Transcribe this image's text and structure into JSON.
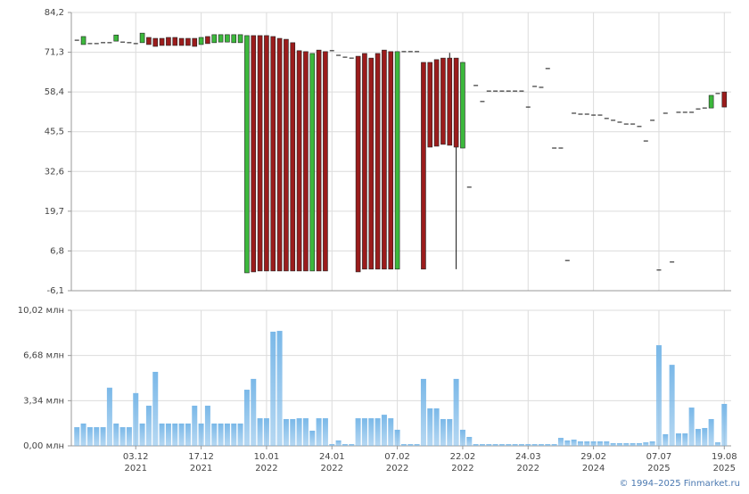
{
  "chart_data": [
    {
      "type": "candlestick",
      "open": [
        75.2,
        73.8,
        74.1,
        74.1,
        74.4,
        74.4,
        74.9,
        74.6,
        74.4,
        74.1,
        74.4,
        76.1,
        75.8,
        75.8,
        76.1,
        76.1,
        75.8,
        75.8,
        75.8,
        73.8,
        76.4,
        74.4,
        74.6,
        74.6,
        74.4,
        74.4,
        -0.3,
        76.7,
        76.7,
        76.7,
        76.4,
        75.8,
        75.5,
        74.4,
        71.8,
        71.5,
        0.3,
        72.0,
        71.5,
        71.8,
        70.3,
        69.7,
        69.4,
        70.0,
        70.9,
        69.4,
        70.9,
        72.0,
        71.5,
        0.9,
        71.5,
        71.5,
        71.5,
        68.0,
        68.0,
        68.9,
        69.4,
        69.4,
        69.4,
        40.2,
        27.5,
        60.5,
        55.3,
        58.7,
        58.7,
        58.7,
        58.7,
        58.7,
        58.7,
        53.5,
        60.2,
        59.9,
        66.0,
        40.2,
        40.2,
        3.7,
        51.5,
        51.2,
        51.2,
        50.9,
        50.9,
        49.8,
        49.2,
        48.6,
        48.0,
        48.0,
        47.2,
        42.5,
        49.2,
        0.6,
        51.5,
        3.2,
        51.8,
        51.8,
        51.8,
        52.9,
        53.2,
        53.2,
        57.9,
        58.4
      ],
      "high": [
        75.2,
        76.4,
        74.1,
        74.1,
        74.4,
        74.4,
        76.9,
        74.6,
        74.4,
        74.1,
        77.5,
        76.1,
        75.8,
        75.8,
        76.1,
        76.1,
        75.8,
        75.8,
        75.8,
        76.1,
        76.4,
        77.0,
        77.0,
        77.0,
        77.0,
        77.0,
        76.7,
        76.7,
        76.7,
        76.7,
        76.4,
        75.8,
        75.5,
        74.4,
        71.8,
        71.5,
        70.9,
        72.0,
        71.5,
        71.8,
        70.3,
        69.7,
        69.4,
        70.0,
        70.9,
        69.4,
        70.9,
        72.0,
        71.5,
        71.5,
        71.5,
        71.5,
        71.5,
        68.0,
        68.0,
        68.9,
        69.4,
        71.1,
        69.4,
        68.0,
        27.5,
        60.5,
        55.3,
        58.7,
        58.7,
        58.7,
        58.7,
        58.7,
        58.7,
        53.5,
        60.2,
        59.9,
        66.0,
        40.2,
        40.2,
        3.7,
        51.5,
        51.2,
        51.2,
        50.9,
        50.9,
        49.8,
        49.2,
        48.6,
        48.0,
        48.0,
        47.2,
        42.5,
        49.2,
        0.6,
        51.5,
        3.2,
        51.8,
        51.8,
        51.8,
        52.9,
        53.2,
        57.3,
        57.9,
        58.4
      ],
      "low": [
        75.2,
        73.8,
        74.1,
        74.1,
        74.4,
        74.4,
        74.9,
        74.6,
        74.4,
        74.1,
        74.4,
        73.8,
        73.2,
        73.5,
        73.5,
        73.5,
        73.5,
        73.5,
        73.2,
        73.8,
        74.1,
        74.4,
        74.6,
        74.6,
        74.4,
        74.4,
        -0.3,
        0.0,
        0.3,
        0.3,
        0.3,
        0.3,
        0.3,
        0.3,
        0.3,
        0.3,
        0.3,
        0.3,
        0.3,
        71.8,
        70.3,
        69.7,
        69.4,
        0.0,
        0.9,
        0.9,
        0.9,
        0.9,
        0.9,
        0.9,
        71.5,
        71.5,
        71.5,
        0.9,
        40.5,
        40.8,
        41.4,
        41.1,
        0.9,
        40.2,
        27.5,
        60.5,
        55.3,
        58.7,
        58.7,
        58.7,
        58.7,
        58.7,
        58.7,
        53.5,
        60.2,
        59.9,
        66.0,
        40.2,
        40.2,
        3.7,
        51.5,
        51.2,
        51.2,
        50.9,
        50.9,
        49.8,
        49.2,
        48.6,
        48.0,
        48.0,
        47.2,
        42.5,
        49.2,
        0.6,
        51.5,
        3.2,
        51.8,
        51.8,
        51.8,
        52.9,
        53.2,
        53.2,
        57.9,
        53.5
      ],
      "close": [
        75.2,
        76.4,
        74.1,
        74.1,
        74.4,
        74.4,
        76.9,
        74.6,
        74.4,
        74.1,
        77.5,
        73.8,
        73.2,
        73.5,
        73.5,
        73.5,
        73.5,
        73.5,
        73.2,
        76.1,
        74.1,
        77.0,
        77.0,
        77.0,
        77.0,
        77.0,
        76.7,
        0.0,
        0.3,
        0.3,
        0.3,
        0.3,
        0.3,
        0.3,
        0.3,
        0.3,
        70.9,
        0.3,
        0.3,
        71.8,
        70.3,
        69.7,
        69.4,
        0.0,
        0.9,
        0.9,
        0.9,
        0.9,
        0.9,
        71.5,
        71.5,
        71.5,
        71.5,
        0.9,
        40.5,
        40.8,
        41.4,
        41.1,
        40.5,
        68.0,
        27.5,
        60.5,
        55.3,
        58.7,
        58.7,
        58.7,
        58.7,
        58.7,
        58.7,
        53.5,
        60.2,
        59.9,
        66.0,
        40.2,
        40.2,
        3.7,
        51.5,
        51.2,
        51.2,
        50.9,
        50.9,
        49.8,
        49.2,
        48.6,
        48.0,
        48.0,
        47.2,
        42.5,
        49.2,
        0.6,
        51.5,
        3.2,
        51.8,
        51.8,
        51.8,
        52.9,
        53.2,
        57.3,
        57.9,
        53.5
      ],
      "up_color": "#3cb83c",
      "down_color": "#9b1c1c",
      "flat_color": "#111111",
      "ylim": [
        -6.1,
        84.2
      ],
      "yticks": [
        {
          "value": -6.1,
          "label": "-6,1"
        },
        {
          "value": 6.8,
          "label": "6,8"
        },
        {
          "value": 19.7,
          "label": "19,7"
        },
        {
          "value": 32.6,
          "label": "32,6"
        },
        {
          "value": 45.5,
          "label": "45,5"
        },
        {
          "value": 58.4,
          "label": "58,4"
        },
        {
          "value": 71.3,
          "label": "71,3"
        },
        {
          "value": 84.2,
          "label": "84,2"
        }
      ],
      "grid": true
    },
    {
      "type": "bar",
      "categories": [
        null,
        null,
        null,
        null,
        null,
        null,
        null,
        null,
        null,
        "03.12 2021",
        null,
        null,
        null,
        null,
        null,
        null,
        null,
        null,
        null,
        "17.12 2021",
        null,
        null,
        null,
        null,
        null,
        null,
        null,
        null,
        null,
        "10.01 2022",
        null,
        null,
        null,
        null,
        null,
        null,
        null,
        null,
        null,
        "24.01 2022",
        null,
        null,
        null,
        null,
        null,
        null,
        null,
        null,
        null,
        "07.02 2022",
        null,
        null,
        null,
        null,
        null,
        null,
        null,
        null,
        null,
        "22.02 2022",
        null,
        null,
        null,
        null,
        null,
        null,
        null,
        null,
        null,
        "24.03 2022",
        null,
        null,
        null,
        null,
        null,
        null,
        null,
        null,
        null,
        "29.02 2024",
        null,
        null,
        null,
        null,
        null,
        null,
        null,
        null,
        null,
        "07.07 2025",
        null,
        null,
        null,
        null,
        null,
        null,
        null,
        null,
        null,
        "19.08 2025"
      ],
      "values": [
        1.38,
        1.65,
        1.38,
        1.38,
        1.38,
        4.3,
        1.65,
        1.38,
        1.38,
        3.9,
        1.65,
        2.97,
        5.47,
        1.65,
        1.65,
        1.65,
        1.65,
        1.65,
        2.97,
        1.65,
        2.97,
        1.65,
        1.65,
        1.65,
        1.65,
        1.65,
        4.15,
        4.95,
        2.04,
        2.04,
        8.44,
        8.5,
        1.98,
        1.98,
        2.04,
        2.04,
        1.12,
        2.04,
        2.04,
        0.13,
        0.4,
        0.13,
        0.13,
        2.04,
        2.04,
        2.04,
        2.04,
        2.3,
        2.04,
        1.19,
        0.13,
        0.13,
        0.13,
        4.95,
        2.77,
        2.77,
        1.98,
        1.98,
        4.95,
        1.19,
        0.66,
        0.13,
        0.13,
        0.13,
        0.13,
        0.13,
        0.13,
        0.13,
        0.13,
        0.13,
        0.13,
        0.13,
        0.13,
        0.13,
        0.59,
        0.4,
        0.46,
        0.33,
        0.33,
        0.33,
        0.33,
        0.33,
        0.2,
        0.2,
        0.2,
        0.2,
        0.2,
        0.26,
        0.33,
        7.44,
        0.86,
        5.99,
        0.92,
        0.92,
        2.83,
        1.25,
        1.32,
        1.98,
        0.26,
        3.1
      ],
      "color": "#7ab8e8",
      "ylim": [
        0,
        10.02
      ],
      "yticks": [
        {
          "value": 0,
          "label": "0,00 млн"
        },
        {
          "value": 3.34,
          "label": "3,34 млн"
        },
        {
          "value": 6.68,
          "label": "6,68 млн"
        },
        {
          "value": 10.02,
          "label": "10,02 млн"
        }
      ],
      "grid": true
    }
  ],
  "footer": "© 1994–2025 Finmarket.ru"
}
